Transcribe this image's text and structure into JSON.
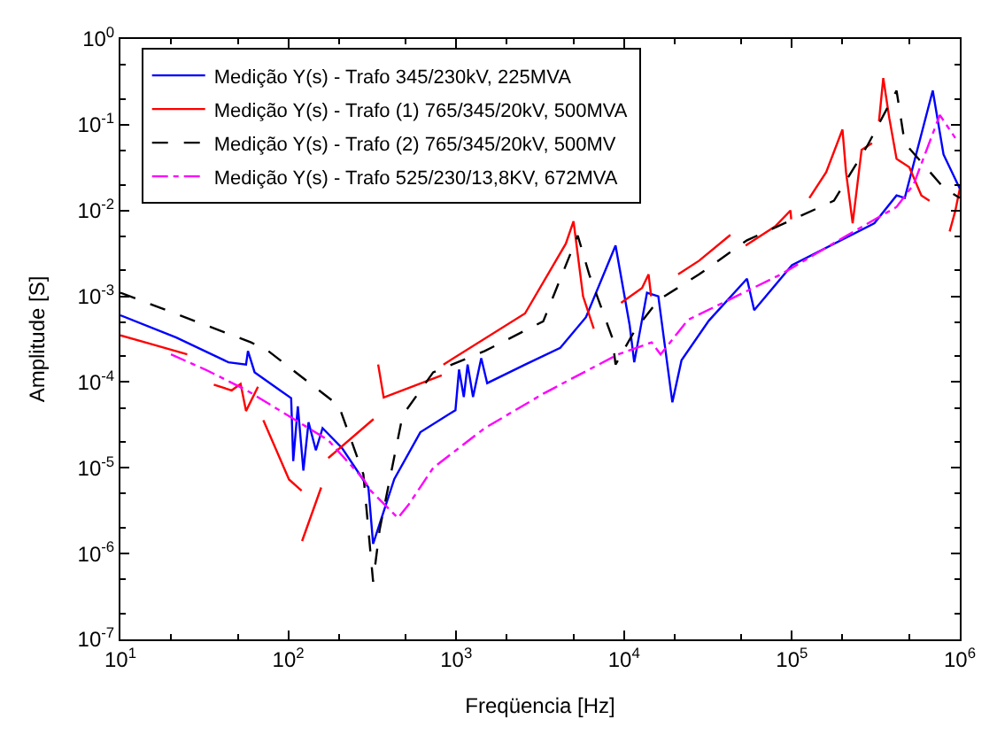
{
  "chart_data": {
    "type": "line",
    "xlabel": "Freqüencia [Hz]",
    "ylabel": "Amplitude [S]",
    "log": "xy",
    "legend": "top left",
    "marker": "none",
    "xlim": [
      10,
      1000000
    ],
    "ylim": [
      1e-07,
      1
    ],
    "xticks": [
      {
        "value": 10,
        "label": "10$^{1}$"
      },
      {
        "value": 100,
        "label": "10$^{2}$"
      },
      {
        "value": 1000,
        "label": "10$^{3}$"
      },
      {
        "value": 10000,
        "label": "10$^{4}$"
      },
      {
        "value": 100000,
        "label": "10$^{5}$"
      },
      {
        "value": 1000000,
        "label": "10$^{6}$"
      }
    ],
    "yticks": [
      {
        "value": 1e-07,
        "label": "10$^{-7}$"
      },
      {
        "value": 1e-06,
        "label": "10$^{-6}$"
      },
      {
        "value": 1e-05,
        "label": "10$^{-5}$"
      },
      {
        "value": 0.0001,
        "label": "10$^{-4}$"
      },
      {
        "value": 0.001,
        "label": "10$^{-3}$"
      },
      {
        "value": 0.01,
        "label": "10$^{-2}$"
      },
      {
        "value": 0.1,
        "label": "10$^{-1}$"
      },
      {
        "value": 1,
        "label": "10$^{0}$"
      }
    ],
    "series": [
      {
        "name": "Medição Y(s) - Trafo 345/230kV, 225MVA",
        "color": "#0000ff",
        "line_style": "solid",
        "x": [
          10,
          21.5,
          44,
          56,
          57.5,
          63,
          90,
          104,
          107,
          114,
          123,
          132,
          146,
          160,
          209,
          300,
          320,
          428,
          612,
          990,
          1040,
          1110,
          1170,
          1260,
          1410,
          1530,
          2580,
          4170,
          5930,
          8900,
          10800,
          11500,
          13700,
          16000,
          19400,
          22000,
          32000,
          54000,
          59600,
          100000,
          310000,
          420000,
          470000,
          690000,
          800000,
          1000000
        ],
        "values": [
          0.0006,
          0.00033,
          0.00017,
          0.00016,
          0.00023,
          0.00013,
          7.9e-05,
          6.5e-05,
          1.2e-05,
          5.2e-05,
          9.3e-06,
          3.4e-05,
          1.6e-05,
          2.9e-05,
          1.7e-05,
          5.9e-06,
          1.3e-06,
          7.4e-06,
          2.6e-05,
          4.7e-05,
          0.00014,
          6.7e-05,
          0.00016,
          6.7e-05,
          0.00019,
          9.7e-05,
          0.00016,
          0.00025,
          0.00057,
          0.0039,
          0.00046,
          0.00017,
          0.0011,
          0.001,
          5.8e-05,
          0.00018,
          0.00052,
          0.0016,
          0.00069,
          0.0023,
          0.0071,
          0.015,
          0.014,
          0.25,
          0.045,
          0.018
        ]
      },
      {
        "name": "Medição Y(s) - Trafo (1) 765/345/20kV, 500MVA",
        "color": "#ff0000",
        "line_style": "solid",
        "x": [
          10,
          15,
          25,
          30,
          36,
          46,
          52,
          56,
          66,
          68,
          71,
          101,
          120,
          120.5,
          120.8,
          157,
          165,
          173,
          322,
          333,
          343,
          370,
          820,
          830,
          840,
          2570,
          4500,
          5000,
          5700,
          6600,
          8000,
          9600,
          12800,
          14000,
          14500,
          17000,
          21000,
          28000,
          43000,
          48000,
          53000,
          80000,
          98000,
          99000,
          110000,
          127000,
          160000,
          200000,
          210000,
          230000,
          260000,
          300000,
          315000,
          330000,
          350000,
          380000,
          420000,
          500000,
          590000,
          660000,
          760000,
          870000,
          940000,
          1000000
        ],
        "values": [
          0.00035,
          0.00028,
          0.00021,
          null,
          9.3e-05,
          8e-05,
          9.5e-05,
          4.6e-05,
          8.8e-05,
          null,
          3.6e-05,
          7.3e-06,
          5.4e-06,
          null,
          1.4e-06,
          5.9e-06,
          null,
          1.3e-05,
          3.7e-05,
          null,
          0.00016,
          6.6e-05,
          0.00012,
          null,
          0.00016,
          0.00063,
          0.0041,
          0.0075,
          0.001,
          0.00042,
          null,
          0.00084,
          0.00125,
          0.0018,
          0.001,
          null,
          0.0018,
          0.0026,
          0.0052,
          null,
          0.0039,
          0.0066,
          0.01,
          0.0079,
          null,
          0.014,
          0.028,
          0.088,
          0.028,
          0.0071,
          0.051,
          0.061,
          null,
          0.11,
          0.35,
          0.12,
          0.04,
          0.032,
          0.015,
          0.013,
          null,
          0.0057,
          0.0099,
          0.018
        ]
      },
      {
        "name": "Medição Y(s) - Trafo (2) 765/345/20kV, 500MV",
        "color": "#000000",
        "line_style": "dashed",
        "x": [
          10,
          60,
          76,
          200,
          280,
          320,
          350,
          480,
          730,
          1480,
          3300,
          5300,
          6200,
          8500,
          8900,
          11600,
          16000,
          28000,
          54000,
          178000,
          280000,
          420000,
          470000,
          810000,
          1000000
        ],
        "values": [
          0.0011,
          0.00029,
          0.00023,
          5.3e-05,
          8.4e-06,
          4.7e-07,
          1.9e-06,
          4.1e-05,
          0.00013,
          0.00023,
          0.00051,
          0.0051,
          0.0018,
          0.00033,
          0.00016,
          0.0004,
          0.0009,
          0.0018,
          0.0045,
          0.013,
          0.056,
          0.25,
          0.061,
          0.018,
          0.014
        ]
      },
      {
        "name": "Medição Y(s) - Trafo 525/230/13,8KV, 672MVA",
        "color": "#ff00ff",
        "line_style": "dashdot",
        "x": [
          20,
          32,
          56,
          90,
          173,
          280,
          310,
          450,
          520,
          730,
          1480,
          3300,
          4900,
          9200,
          14600,
          16500,
          24000,
          86000,
          190000,
          420000,
          530000,
          760000,
          940000
        ],
        "values": [
          0.00021,
          0.00014,
          8.1e-05,
          4.6e-05,
          2.1e-05,
          7.4e-06,
          5.4e-06,
          2.6e-06,
          3.7e-06,
          1e-05,
          2.9e-05,
          7.3e-05,
          0.00011,
          0.00021,
          0.00029,
          0.00021,
          0.00053,
          0.0018,
          0.0045,
          0.011,
          0.02,
          0.13,
          0.07
        ]
      }
    ]
  }
}
